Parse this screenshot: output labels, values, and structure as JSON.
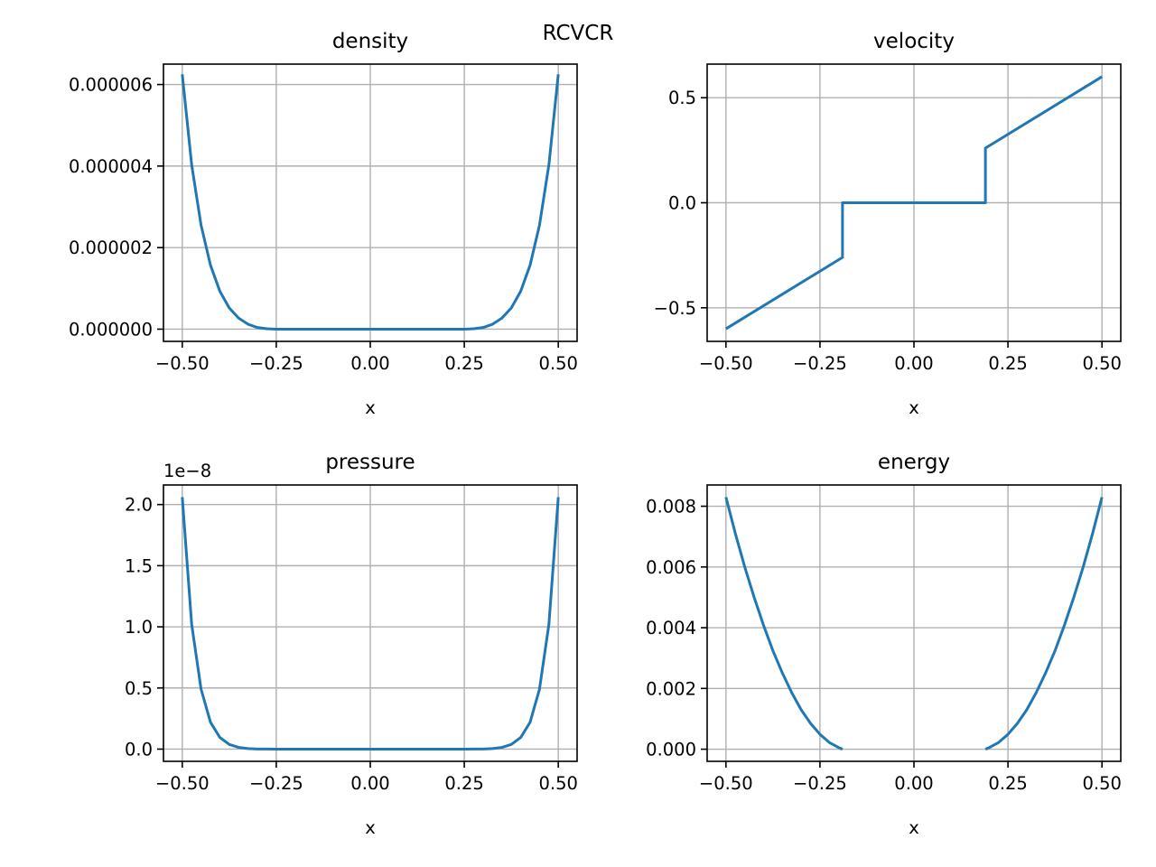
{
  "figure": {
    "suptitle": "RCVCR",
    "line_color": "#1f77b4",
    "grid_color": "#b0b0b0"
  },
  "chart_data": [
    {
      "type": "line",
      "title": "density",
      "xlabel": "x",
      "ylabel": "",
      "grid": true,
      "xlim": [
        -0.55,
        0.55
      ],
      "ylim": [
        -3e-07,
        6.5e-06
      ],
      "xticks": [
        -0.5,
        -0.25,
        0.0,
        0.25,
        0.5
      ],
      "xticklabels": [
        "−0.50",
        "−0.25",
        "0.00",
        "0.25",
        "0.50"
      ],
      "yticks": [
        0.0,
        2e-06,
        4e-06,
        6e-06
      ],
      "yticklabels": [
        "0.000000",
        "0.000002",
        "0.000004",
        "0.000006"
      ],
      "offset_text": "",
      "series": [
        {
          "x": [
            -0.5,
            -0.475,
            -0.45,
            -0.425,
            -0.4,
            -0.375,
            -0.35,
            -0.325,
            -0.3,
            -0.275,
            -0.25,
            -0.2,
            -0.1,
            0.0,
            0.1,
            0.2,
            0.25,
            0.275,
            0.3,
            0.325,
            0.35,
            0.375,
            0.4,
            0.425,
            0.45,
            0.475,
            0.5
          ],
          "y": [
            6.25e-06,
            4.03e-06,
            2.55e-06,
            1.57e-06,
            9.3e-07,
            5.2e-07,
            2.7e-07,
            1.2e-07,
            4e-08,
            1e-08,
            0.0,
            0.0,
            0.0,
            0.0,
            0.0,
            0.0,
            0.0,
            1e-08,
            4e-08,
            1.2e-07,
            2.7e-07,
            5.2e-07,
            9.3e-07,
            1.57e-06,
            2.55e-06,
            4.03e-06,
            6.25e-06
          ]
        }
      ]
    },
    {
      "type": "line",
      "title": "velocity",
      "xlabel": "x",
      "ylabel": "",
      "grid": true,
      "xlim": [
        -0.55,
        0.55
      ],
      "ylim": [
        -0.66,
        0.66
      ],
      "xticks": [
        -0.5,
        -0.25,
        0.0,
        0.25,
        0.5
      ],
      "xticklabels": [
        "−0.50",
        "−0.25",
        "0.00",
        "0.25",
        "0.50"
      ],
      "yticks": [
        -0.5,
        0.0,
        0.5
      ],
      "yticklabels": [
        "−0.5",
        "0.0",
        "0.5"
      ],
      "offset_text": "",
      "series": [
        {
          "x": [
            -0.5,
            -0.19,
            -0.19,
            0.0,
            0.19,
            0.19,
            0.5
          ],
          "y": [
            -0.6,
            -0.26,
            0.0,
            0.0,
            0.0,
            0.26,
            0.6
          ]
        }
      ]
    },
    {
      "type": "line",
      "title": "pressure",
      "xlabel": "x",
      "ylabel": "",
      "grid": true,
      "xlim": [
        -0.55,
        0.55
      ],
      "ylim": [
        -0.1,
        2.16
      ],
      "xticks": [
        -0.5,
        -0.25,
        0.0,
        0.25,
        0.5
      ],
      "xticklabels": [
        "−0.50",
        "−0.25",
        "0.00",
        "0.25",
        "0.50"
      ],
      "yticks": [
        0.0,
        0.5,
        1.0,
        1.5,
        2.0
      ],
      "yticklabels": [
        "0.0",
        "0.5",
        "1.0",
        "1.5",
        "2.0"
      ],
      "offset_text": "1e−8",
      "series": [
        {
          "x": [
            -0.5,
            -0.475,
            -0.45,
            -0.425,
            -0.4,
            -0.375,
            -0.35,
            -0.325,
            -0.3,
            -0.275,
            -0.25,
            -0.2,
            -0.1,
            0.0,
            0.1,
            0.2,
            0.25,
            0.275,
            0.3,
            0.325,
            0.35,
            0.375,
            0.4,
            0.425,
            0.45,
            0.475,
            0.5
          ],
          "y": [
            2.06,
            1.02,
            0.49,
            0.22,
            0.095,
            0.038,
            0.014,
            0.004,
            0.001,
            0.0002,
            0.0,
            0.0,
            0.0,
            0.0,
            0.0,
            0.0,
            0.0,
            0.0002,
            0.001,
            0.004,
            0.014,
            0.038,
            0.095,
            0.22,
            0.49,
            1.02,
            2.06
          ]
        }
      ]
    },
    {
      "type": "line",
      "title": "energy",
      "xlabel": "x",
      "ylabel": "",
      "grid": true,
      "xlim": [
        -0.55,
        0.55
      ],
      "ylim": [
        -0.0004,
        0.0087
      ],
      "xticks": [
        -0.5,
        -0.25,
        0.0,
        0.25,
        0.5
      ],
      "xticklabels": [
        "−0.50",
        "−0.25",
        "0.00",
        "0.25",
        "0.50"
      ],
      "yticks": [
        0.0,
        0.002,
        0.004,
        0.006,
        0.008
      ],
      "yticklabels": [
        "0.000",
        "0.002",
        "0.004",
        "0.006",
        "0.008"
      ],
      "offset_text": "",
      "series": [
        {
          "x": [
            -0.5,
            -0.475,
            -0.45,
            -0.425,
            -0.4,
            -0.375,
            -0.35,
            -0.325,
            -0.3,
            -0.275,
            -0.25,
            -0.225,
            -0.2,
            -0.19
          ],
          "y": [
            0.0083,
            0.0071,
            0.006,
            0.005,
            0.00408,
            0.00324,
            0.00251,
            0.00186,
            0.0013,
            0.00085,
            0.00049,
            0.00022,
            5e-05,
            0.0
          ]
        },
        {
          "x": [
            0.19,
            0.2,
            0.225,
            0.25,
            0.275,
            0.3,
            0.325,
            0.35,
            0.375,
            0.4,
            0.425,
            0.45,
            0.475,
            0.5
          ],
          "y": [
            0.0,
            5e-05,
            0.00022,
            0.00049,
            0.00085,
            0.0013,
            0.00186,
            0.00251,
            0.00324,
            0.00408,
            0.005,
            0.006,
            0.0071,
            0.0083
          ]
        }
      ]
    }
  ]
}
